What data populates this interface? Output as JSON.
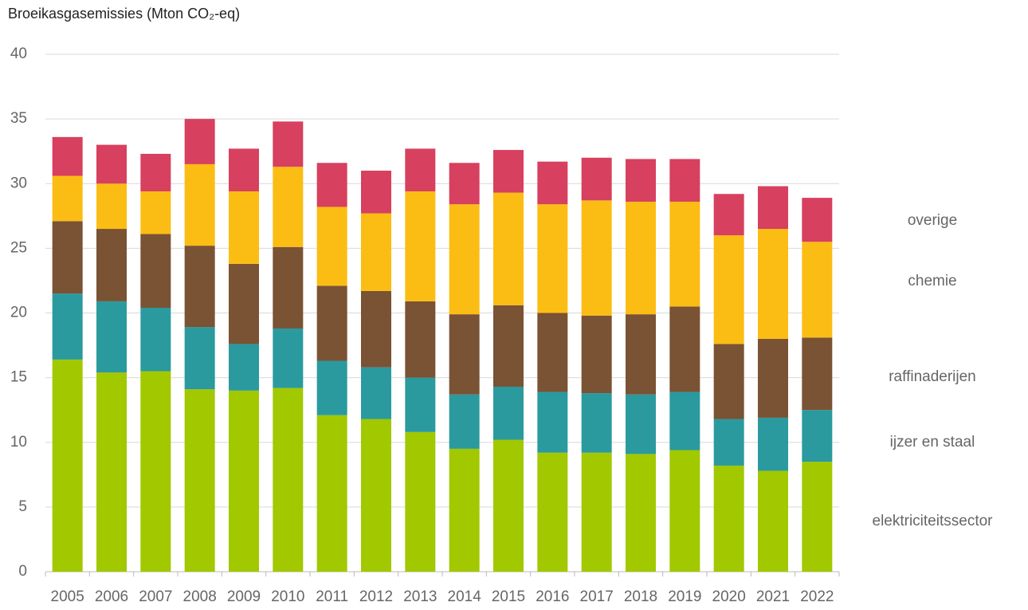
{
  "chart_data": {
    "type": "stacked_bar",
    "y_axis_label": "Broeikasgasemissies (Mton CO₂-eq)",
    "categories": [
      "2005",
      "2006",
      "2007",
      "2008",
      "2009",
      "2010",
      "2011",
      "2012",
      "2013",
      "2014",
      "2015",
      "2016",
      "2017",
      "2018",
      "2019",
      "2020",
      "2021",
      "2022"
    ],
    "series": [
      {
        "name": "elektriciteitssector",
        "color": "#a2c800",
        "values": [
          16.4,
          15.4,
          15.5,
          14.1,
          14.0,
          14.2,
          12.1,
          11.8,
          10.8,
          9.5,
          10.2,
          9.2,
          9.2,
          9.1,
          9.4,
          8.2,
          7.8,
          8.5
        ]
      },
      {
        "name": "ijzer en staal",
        "color": "#2a9a9f",
        "values": [
          5.1,
          5.5,
          4.9,
          4.8,
          3.6,
          4.6,
          4.2,
          4.0,
          4.2,
          4.2,
          4.1,
          4.7,
          4.6,
          4.6,
          4.5,
          3.6,
          4.1,
          4.0
        ]
      },
      {
        "name": "raffinaderijen",
        "color": "#7a5234",
        "values": [
          5.6,
          5.6,
          5.7,
          6.3,
          6.2,
          6.3,
          5.8,
          5.9,
          5.9,
          6.2,
          6.3,
          6.1,
          6.0,
          6.2,
          6.6,
          5.8,
          6.1,
          5.6
        ]
      },
      {
        "name": "chemie",
        "color": "#fbbd13",
        "values": [
          3.5,
          3.5,
          3.3,
          6.3,
          5.6,
          6.2,
          6.1,
          6.0,
          8.5,
          8.5,
          8.7,
          8.4,
          8.9,
          8.7,
          8.1,
          8.4,
          8.5,
          7.4
        ]
      },
      {
        "name": "overige",
        "color": "#d7405e",
        "values": [
          3.0,
          3.0,
          2.9,
          3.5,
          3.3,
          3.5,
          3.4,
          3.3,
          3.3,
          3.2,
          3.3,
          3.3,
          3.3,
          3.3,
          3.3,
          3.2,
          3.3,
          3.4
        ]
      }
    ],
    "ylim": [
      0,
      40
    ],
    "yticks": [
      0,
      5,
      10,
      15,
      20,
      25,
      30,
      35,
      40
    ],
    "grid": true
  }
}
